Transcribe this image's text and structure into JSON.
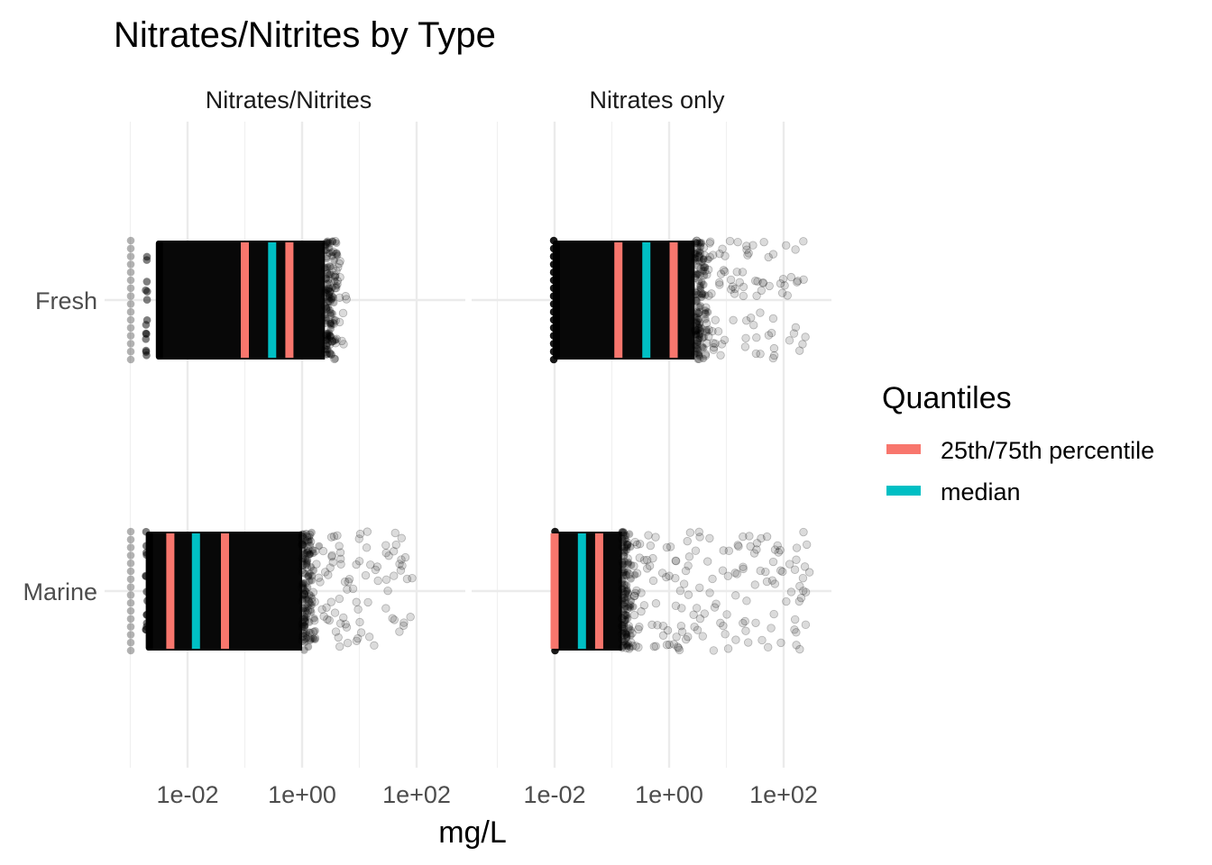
{
  "chart_data": {
    "type": "scatter",
    "title": "Nitrates/Nitrites by Type",
    "xlabel": "mg/L",
    "ylabel": "",
    "x_scale": "log10",
    "x_tick_labels": [
      "1e-02",
      "1e+00",
      "1e+02"
    ],
    "x_tick_values": [
      0.01,
      1,
      100
    ],
    "categories": [
      "Fresh",
      "Marine"
    ],
    "grid": true,
    "panels": [
      {
        "name": "Nitrates/Nitrites",
        "xlim": [
          0.001,
          1000
        ],
        "rows": {
          "Fresh": {
            "range": [
              0.001,
              6
            ],
            "dense_range": [
              0.003,
              2.5
            ],
            "q25": 0.1,
            "median": 0.3,
            "q75": 0.6
          },
          "Marine": {
            "range": [
              0.001,
              100
            ],
            "dense_range": [
              0.002,
              1
            ],
            "q25": 0.005,
            "median": 0.014,
            "q75": 0.045
          }
        }
      },
      {
        "name": "Nitrates only",
        "xlim": [
          0.001,
          1000
        ],
        "rows": {
          "Fresh": {
            "range": [
              0.0095,
              250
            ],
            "dense_range": [
              0.01,
              2.8
            ],
            "q25": 0.13,
            "median": 0.4,
            "q75": 1.2
          },
          "Marine": {
            "range": [
              0.01,
              300
            ],
            "dense_range": [
              0.01,
              0.15
            ],
            "q25": 0.01,
            "median": 0.03,
            "q75": 0.06
          }
        }
      }
    ],
    "legend": {
      "title": "Quantiles",
      "position": "right",
      "entries": [
        {
          "label": "25th/75th percentile",
          "color": "#F8766D"
        },
        {
          "label": "median",
          "color": "#00BFC4"
        }
      ]
    },
    "colors": {
      "percentile": "#F8766D",
      "median": "#00BFC4",
      "points": "#000000"
    }
  }
}
